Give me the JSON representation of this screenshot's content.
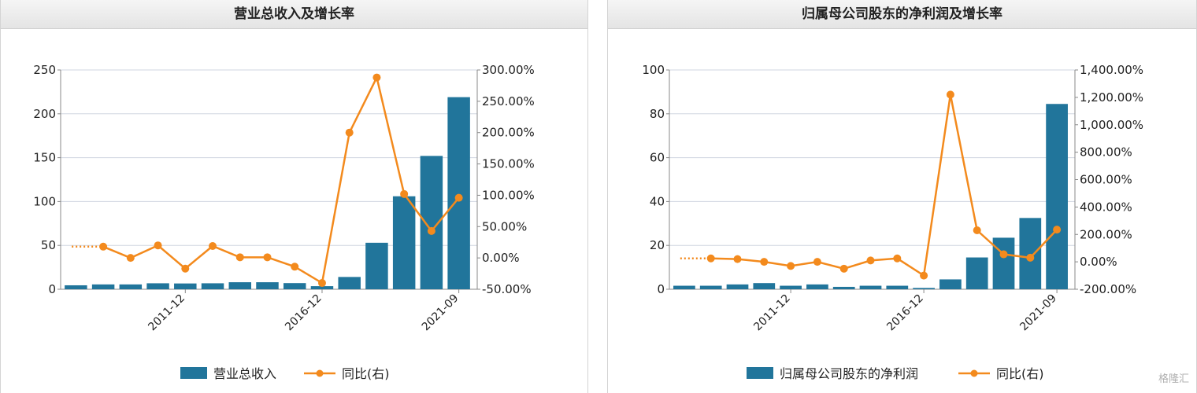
{
  "watermark": "格隆汇",
  "chart_data": [
    {
      "type": "bar+line",
      "title": "营业总收入及增长率",
      "x_tick_labels": [
        "2011-12",
        "2016-12",
        "2021-09"
      ],
      "x_tick_index": [
        4,
        9,
        14
      ],
      "left_axis": {
        "min": 0,
        "max": 250,
        "ticks": [
          0,
          50,
          100,
          150,
          200,
          250
        ]
      },
      "right_axis": {
        "min": -50,
        "max": 300,
        "ticks": [
          "-50.00%",
          "0.00%",
          "50.00%",
          "100.00%",
          "150.00%",
          "200.00%",
          "250.00%",
          "300.00%"
        ]
      },
      "grid": true,
      "legend_position": "bottom",
      "series": [
        {
          "name": "营业总收入",
          "type": "bar",
          "axis": "left",
          "color": "#21759b",
          "values": [
            4.5,
            5.5,
            5.5,
            6.8,
            6.6,
            6.8,
            8.0,
            8.0,
            7.0,
            3.5,
            14,
            53,
            106,
            152,
            219
          ]
        },
        {
          "name": "同比(右)",
          "type": "line",
          "axis": "right",
          "color": "#f38a1d",
          "values": [
            null,
            18,
            0,
            20,
            -17,
            19,
            1,
            1,
            -14,
            -40,
            200,
            288,
            102,
            43,
            96
          ],
          "dotted_lead_value": 18
        }
      ]
    },
    {
      "type": "bar+line",
      "title": "归属母公司股东的净利润及增长率",
      "x_tick_labels": [
        "2011-12",
        "2016-12",
        "2021-09"
      ],
      "x_tick_index": [
        4,
        9,
        14
      ],
      "left_axis": {
        "min": 0,
        "max": 100,
        "ticks": [
          0,
          20,
          40,
          60,
          80,
          100
        ]
      },
      "right_axis": {
        "min": -200,
        "max": 1400,
        "ticks": [
          "-200.00%",
          "0.00%",
          "200.00%",
          "400.00%",
          "600.00%",
          "800.00%",
          "1,000.00%",
          "1,200.00%",
          "1,400.00%"
        ]
      },
      "grid": true,
      "legend_position": "bottom",
      "series": [
        {
          "name": "归属母公司股东的净利润",
          "type": "bar",
          "axis": "left",
          "color": "#21759b",
          "values": [
            1.6,
            1.6,
            2.2,
            2.8,
            1.6,
            2.2,
            1.1,
            1.6,
            1.6,
            0.6,
            4.5,
            14.5,
            23.5,
            32.5,
            84.5
          ]
        },
        {
          "name": "同比(右)",
          "type": "line",
          "axis": "right",
          "color": "#f38a1d",
          "values": [
            null,
            25,
            20,
            0,
            -30,
            0,
            -50,
            10,
            25,
            -100,
            1220,
            230,
            55,
            30,
            235
          ],
          "dotted_lead_value": 25
        }
      ]
    }
  ]
}
